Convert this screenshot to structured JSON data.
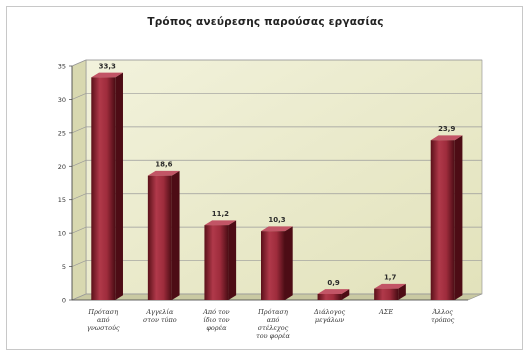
{
  "chart_data": {
    "type": "bar",
    "title": "Τρόπος ανεύρεσης παρούσας εργασίας",
    "xlabel": "",
    "ylabel": "",
    "ylim": [
      0,
      35
    ],
    "yticks": [
      "0",
      "5",
      "10",
      "15",
      "20",
      "25",
      "30",
      "35"
    ],
    "grid": true,
    "legend": "none",
    "bar_color": "#8b2331",
    "wall_color": "#ebebcc",
    "categories": [
      [
        "Πρόταση",
        "από",
        "γνωστούς"
      ],
      [
        "Αγγελία",
        "στον τύπο"
      ],
      [
        "Από τον",
        "ίδιο τον",
        "φορέα"
      ],
      [
        "Πρόταση",
        "από",
        "στέλεχος",
        "του φορέα"
      ],
      [
        "Διάλογος",
        "μεγάλων"
      ],
      [
        "ΑΣΕ"
      ],
      [
        "Άλλος",
        "τρόπος"
      ]
    ],
    "values": [
      33.3,
      18.6,
      11.2,
      10.3,
      0.9,
      1.7,
      23.9
    ],
    "value_labels": [
      "33,3",
      "18,6",
      "11,2",
      "10,3",
      "0,9",
      "1,7",
      "23,9"
    ]
  }
}
